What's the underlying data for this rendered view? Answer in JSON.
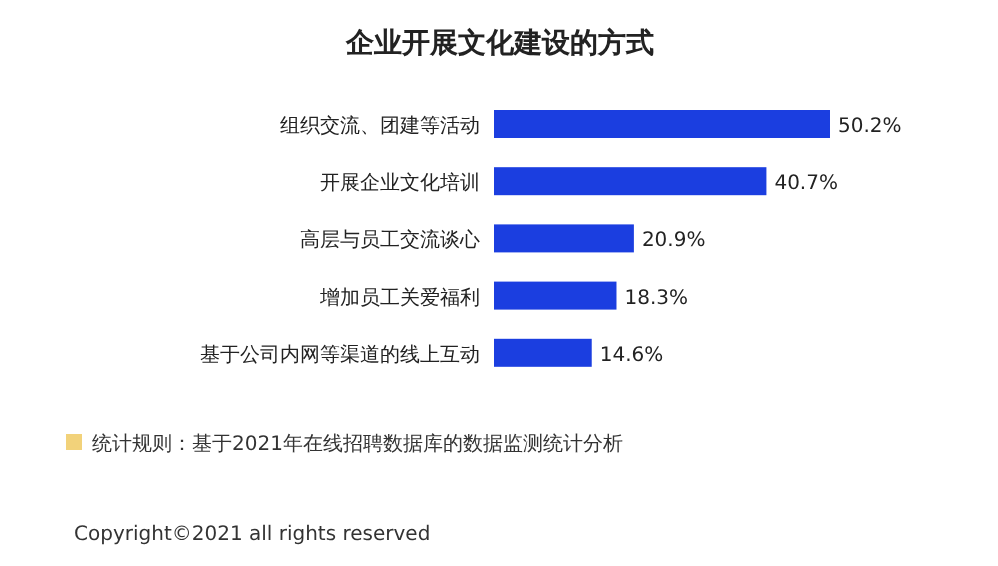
{
  "chart_data": {
    "type": "bar",
    "orientation": "horizontal",
    "title": "企业开展文化建设的方式",
    "categories": [
      "组织交流、团建等活动",
      "开展企业文化培训",
      "高层与员工交流谈心",
      "增加员工关爱福利",
      "基于公司内网等渠道的线上互动"
    ],
    "values": [
      50.2,
      40.7,
      20.9,
      18.3,
      14.6
    ],
    "color": "#1b3ee0",
    "value_labels": [
      "50.2%",
      "40.7%",
      "20.9%",
      "18.3%",
      "14.6%"
    ],
    "annotations": [
      "统计规则：基于2021年在线招聘数据库的数据监测统计分析",
      "Copyright©2021 all rights reserved"
    ]
  }
}
